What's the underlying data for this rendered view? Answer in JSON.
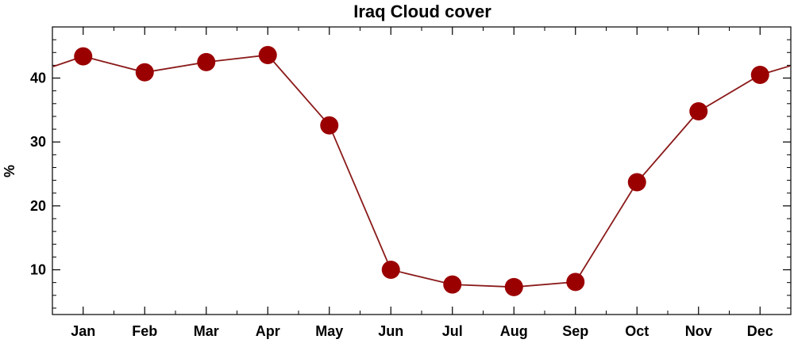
{
  "chart_data": {
    "type": "line",
    "title": "Iraq Cloud cover",
    "xlabel": "",
    "ylabel": "%",
    "categories": [
      "Jan",
      "Feb",
      "Mar",
      "Apr",
      "May",
      "Jun",
      "Jul",
      "Aug",
      "Sep",
      "Oct",
      "Nov",
      "Dec"
    ],
    "series": [
      {
        "values": [
          43.4,
          40.9,
          42.5,
          43.6,
          32.6,
          10.0,
          7.7,
          7.3,
          8.1,
          23.7,
          34.8,
          40.5
        ]
      }
    ],
    "wrap_values": {
      "left_edge": 41.8,
      "right_edge": 41.9
    },
    "ylim": [
      3,
      48
    ],
    "yticks": [
      10,
      20,
      30,
      40
    ],
    "grid": false,
    "legend": "none",
    "colors": {
      "line": "#8b1a1a",
      "marker": "#9b0000",
      "axis": "#000000"
    }
  }
}
